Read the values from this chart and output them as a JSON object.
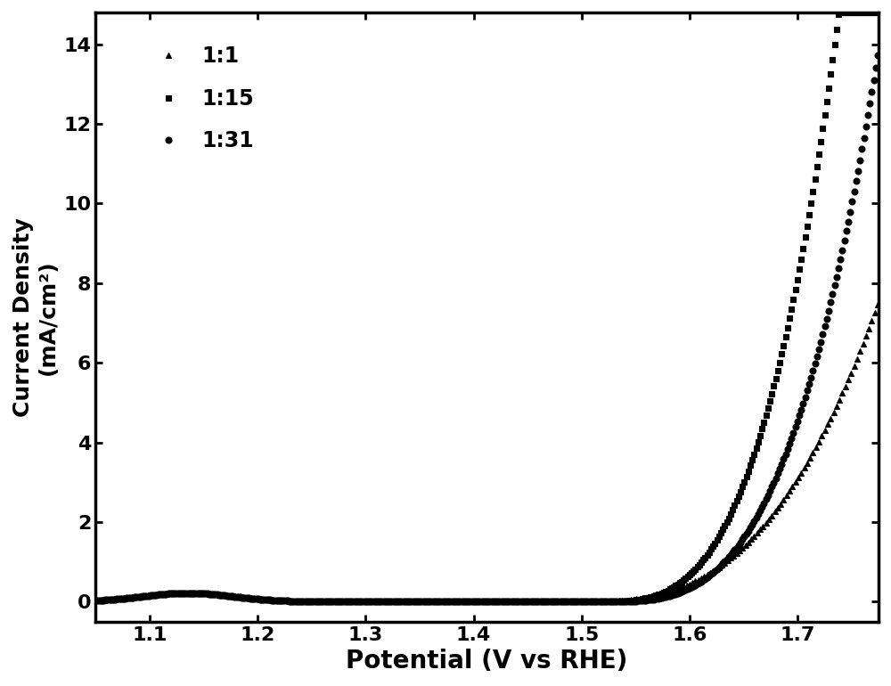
{
  "title": "",
  "xlabel": "Potential (V vs RHE)",
  "ylabel_line1": "Current Density",
  "ylabel_line2": "(mA/cm²)",
  "xlim": [
    1.05,
    1.775
  ],
  "ylim": [
    -0.5,
    14.8
  ],
  "xticks": [
    1.1,
    1.2,
    1.3,
    1.4,
    1.5,
    1.6,
    1.7
  ],
  "yticks": [
    0,
    2,
    4,
    6,
    8,
    10,
    12,
    14
  ],
  "series": [
    {
      "label": "1:1",
      "marker": "^",
      "color": "#000000",
      "onset": 1.5,
      "scale": 280.0,
      "power": 2.8
    },
    {
      "label": "1:15",
      "marker": "s",
      "color": "#000000",
      "onset": 1.515,
      "scale": 1800.0,
      "power": 3.2
    },
    {
      "label": "1:31",
      "marker": "o",
      "color": "#000000",
      "onset": 1.52,
      "scale": 1100.0,
      "power": 3.2
    }
  ],
  "background_color": "#ffffff",
  "axis_color": "#000000",
  "markersize": 5,
  "markeredgewidth": 0.8,
  "linewidth": 0,
  "xlabel_fontsize": 20,
  "ylabel_fontsize": 18,
  "tick_fontsize": 16,
  "legend_fontsize": 17,
  "figure_width": 10.0,
  "figure_height": 7.7,
  "outer_border": true
}
